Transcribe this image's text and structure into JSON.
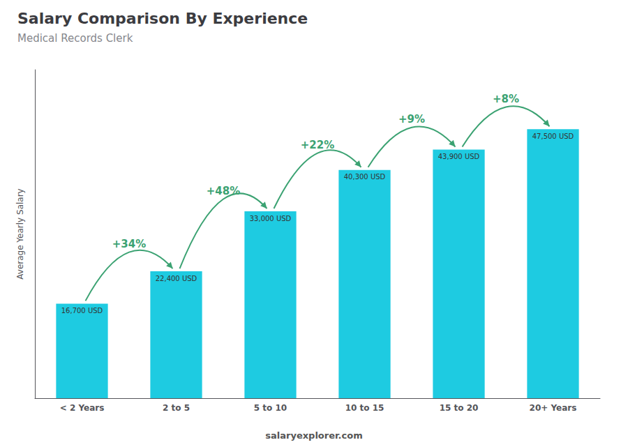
{
  "chart_data": {
    "type": "bar",
    "title": "Salary Comparison By Experience",
    "subtitle": "Medical Records Clerk",
    "categories": [
      "< 2 Years",
      "2 to 5",
      "5 to 10",
      "10 to 15",
      "15 to 20",
      "20+ Years"
    ],
    "values": [
      16700,
      22400,
      33000,
      40300,
      43900,
      47500
    ],
    "value_labels": [
      "16,700 USD",
      "22,400 USD",
      "33,000 USD",
      "40,300 USD",
      "43,900 USD",
      "47,500 USD"
    ],
    "data_labels": true,
    "color": "#1ecbe1",
    "ylabel": "Average Yearly Salary",
    "ylim": [
      0,
      58000
    ],
    "tick_labels": "x",
    "grid": false,
    "pct_changes": [
      "+34%",
      "+48%",
      "+22%",
      "+9%",
      "+8%"
    ],
    "footer": [
      "salary",
      "explorer",
      ".com"
    ]
  }
}
